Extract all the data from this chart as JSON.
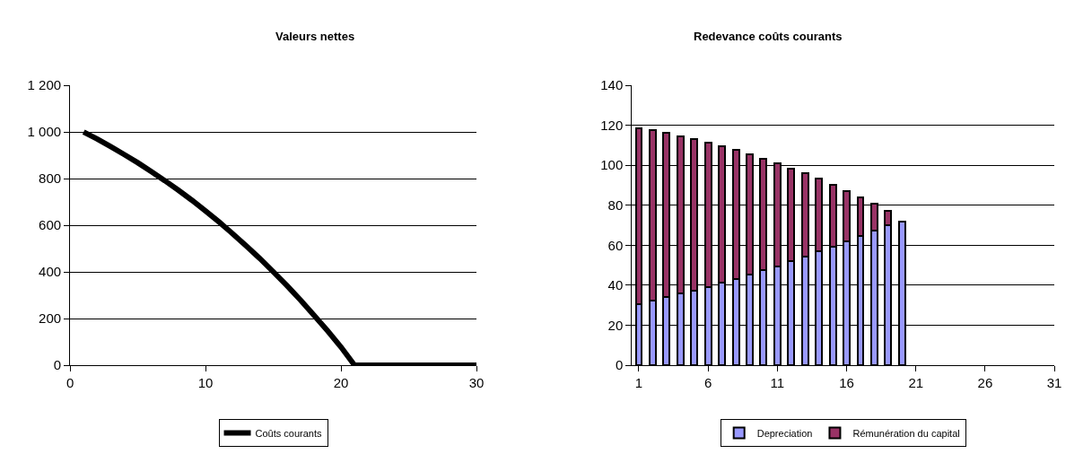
{
  "chart_data": [
    {
      "type": "line",
      "title": "Valeurs nettes",
      "x": [
        1,
        2,
        3,
        4,
        5,
        6,
        7,
        8,
        9,
        10,
        11,
        12,
        13,
        14,
        15,
        16,
        17,
        18,
        19,
        20,
        21,
        30
      ],
      "series": [
        {
          "name": "Coûts courants",
          "color": "#000000",
          "values": [
            1000,
            970,
            937,
            903,
            868,
            830,
            791,
            750,
            707,
            661,
            614,
            564,
            512,
            458,
            401,
            342,
            280,
            215,
            148,
            78,
            0,
            0
          ]
        }
      ],
      "xlim": [
        0,
        30
      ],
      "xticks": [
        0,
        10,
        20,
        30
      ],
      "ylim": [
        0,
        1200
      ],
      "yticks": [
        0,
        200,
        400,
        600,
        800,
        {
          "value": 1000,
          "label": "1 000"
        },
        {
          "value": 1200,
          "label": "1 200"
        }
      ],
      "grid": "y",
      "legend": "bottom",
      "marker": "none",
      "line_style": "solid"
    },
    {
      "type": "bar",
      "title": "Redevance coûts courants",
      "stacked": true,
      "x": [
        1,
        2,
        3,
        4,
        5,
        6,
        7,
        8,
        9,
        10,
        11,
        12,
        13,
        14,
        15,
        16,
        17,
        18,
        19,
        20
      ],
      "series": [
        {
          "name": "Depreciation",
          "color": "#9999ff",
          "values": [
            30.4,
            32.2,
            34.0,
            35.7,
            37.3,
            39.1,
            41.3,
            43.3,
            45.3,
            47.6,
            49.6,
            51.9,
            54.4,
            56.8,
            59.3,
            62.0,
            64.6,
            67.5,
            70.2,
            71.9
          ]
        },
        {
          "name": "Rémunération du capital",
          "color": "#993366",
          "values": [
            88.2,
            85.2,
            82.1,
            78.8,
            75.6,
            72.3,
            68.2,
            64.5,
            60.3,
            55.7,
            51.3,
            46.5,
            41.7,
            36.5,
            30.9,
            25.3,
            19.3,
            13.1,
            6.8,
            null
          ]
        }
      ],
      "xlim": [
        0.5,
        31
      ],
      "xticks": [
        1,
        6,
        11,
        16,
        21,
        26,
        31
      ],
      "ylim": [
        0,
        140
      ],
      "yticks": [
        0,
        20,
        40,
        60,
        80,
        100,
        120,
        140
      ],
      "grid": "y",
      "legend": "bottom"
    }
  ]
}
